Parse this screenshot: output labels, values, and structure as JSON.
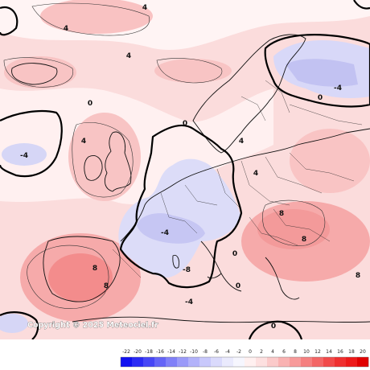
{
  "copyright": "Copyright © 2025 Meteociel.fr",
  "legend": {
    "ticks": [
      "-22",
      "-20",
      "-18",
      "-16",
      "-14",
      "-12",
      "-10",
      "-8",
      "-6",
      "-4",
      "-2",
      "0",
      "2",
      "4",
      "6",
      "8",
      "10",
      "12",
      "14",
      "16",
      "18",
      "20"
    ],
    "colors": [
      "#1010f0",
      "#2a2af4",
      "#4646f6",
      "#6464f7",
      "#8080f8",
      "#9a9af9",
      "#b2b2fa",
      "#c8c8fb",
      "#dadafc",
      "#eaeafd",
      "#f6f6fe",
      "#fff0f0",
      "#fde0e0",
      "#fbcaca",
      "#f9b2b2",
      "#f79a9a",
      "#f58080",
      "#f36666",
      "#f14a4a",
      "#ef3030",
      "#ed1a1a",
      "#e00000"
    ]
  },
  "contour_labels": [
    "-4",
    "4",
    "0",
    "0",
    "8",
    "4",
    "8",
    "-4",
    "-4",
    "4",
    "-8",
    "0",
    "4",
    "0",
    "4",
    "-4",
    "0",
    "8",
    "8",
    "8",
    "4",
    "0"
  ],
  "colors": {
    "ocean_pos": "#fbd8d8",
    "land_pos": "#fcc8c8",
    "neg_zone": "#e2e2fb",
    "neg_deep": "#c6c6f5",
    "warm_core": "#f38c8c",
    "coast": "#000000"
  }
}
